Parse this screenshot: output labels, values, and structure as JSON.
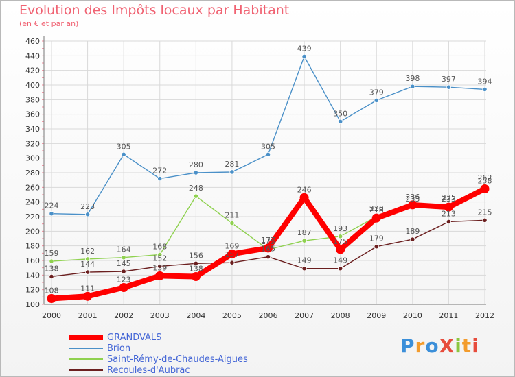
{
  "title": "Evolution des Impôts locaux par Habitant",
  "subtitle": "(en € et par an)",
  "logo": "ProXiti",
  "chart_data": {
    "type": "line",
    "categories": [
      "2000",
      "2001",
      "2002",
      "2003",
      "2004",
      "2005",
      "2006",
      "2007",
      "2008",
      "2009",
      "2010",
      "2011",
      "2012"
    ],
    "ylim": [
      100,
      460
    ],
    "yticks": [
      100,
      120,
      140,
      160,
      180,
      200,
      220,
      240,
      260,
      280,
      300,
      320,
      340,
      360,
      380,
      400,
      420,
      440,
      460
    ],
    "grid": true,
    "legend": "bottom-left",
    "series": [
      {
        "name": "GRANDVALS",
        "color": "#ff0000",
        "values": [
          108,
          111,
          123,
          139,
          138,
          169,
          177,
          246,
          175,
          218,
          236,
          233,
          258
        ]
      },
      {
        "name": "Brion",
        "color": "#4a90c8",
        "values": [
          224,
          223,
          305,
          272,
          280,
          281,
          305,
          439,
          350,
          379,
          398,
          397,
          394
        ]
      },
      {
        "name": "Saint-Rémy-de-Chaudes-Aigues",
        "color": "#8fd14f",
        "values": [
          159,
          162,
          164,
          168,
          248,
          211,
          175,
          187,
          193,
          220,
          233,
          235,
          262
        ]
      },
      {
        "name": "Recoules-d'Aubrac",
        "color": "#6b1f1f",
        "values": [
          138,
          144,
          145,
          152,
          156,
          157,
          165,
          149,
          149,
          179,
          189,
          213,
          215
        ]
      }
    ]
  }
}
